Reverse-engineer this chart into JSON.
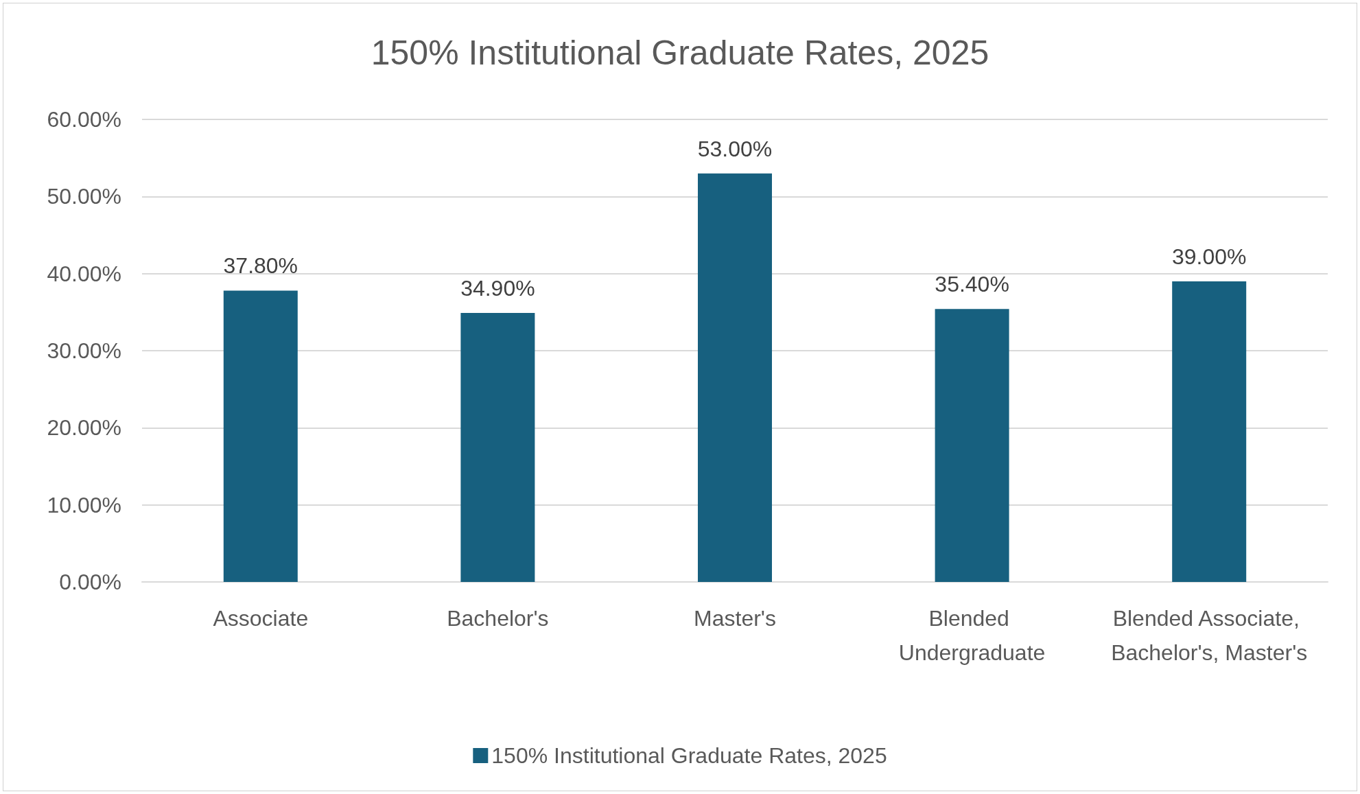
{
  "chart_data": {
    "type": "bar",
    "title": "150% Institutional Graduate Rates, 2025",
    "categories": [
      "Associate",
      "Bachelor's",
      "Master's",
      "Blended Undergraduate",
      "Blended Associate, Bachelor's, Master's"
    ],
    "series": [
      {
        "name": "150% Institutional Graduate Rates, 2025",
        "color": "#17607f",
        "values": [
          37.8,
          34.9,
          53.0,
          35.4,
          39.0
        ],
        "value_labels": [
          "37.80%",
          "34.90%",
          "53.00%",
          "35.40%",
          "39.00%"
        ]
      }
    ],
    "ylim": [
      0,
      60
    ],
    "yticks": [
      {
        "value": 0,
        "label": "0.00%"
      },
      {
        "value": 10,
        "label": "10.00%"
      },
      {
        "value": 20,
        "label": "20.00%"
      },
      {
        "value": 30,
        "label": "30.00%"
      },
      {
        "value": 40,
        "label": "40.00%"
      },
      {
        "value": 50,
        "label": "50.00%"
      },
      {
        "value": 60,
        "label": "60.00%"
      }
    ],
    "grid": "y",
    "legend": "bottom"
  }
}
